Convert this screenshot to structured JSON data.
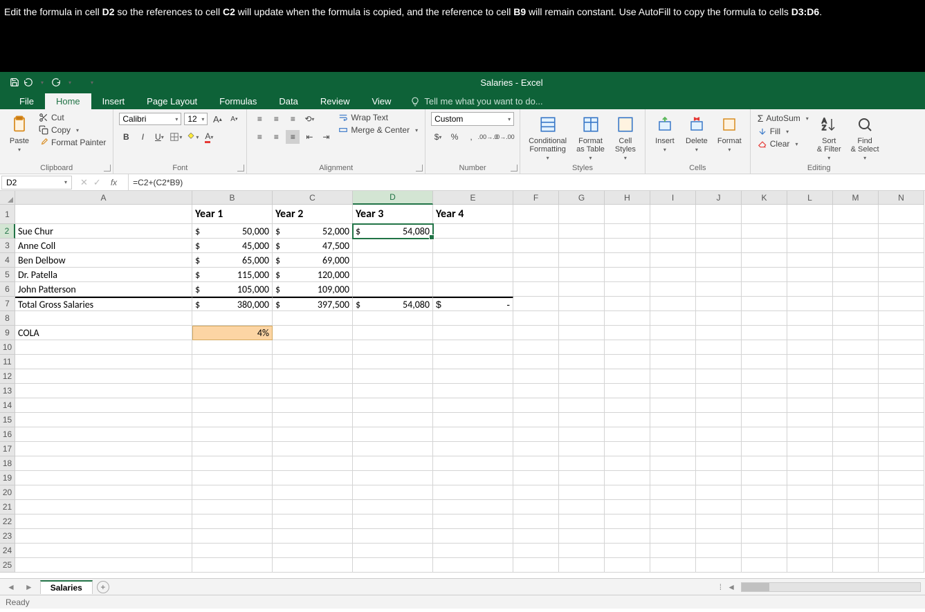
{
  "instruction": {
    "prefix": "Edit the formula in cell ",
    "cell1": "D2",
    "mid1": " so the references to cell ",
    "cell2": "C2",
    "mid2": " will update when the formula is copied, and the reference to cell ",
    "cell3": "B9",
    "mid3": " will remain constant. Use AutoFill to copy the formula to cells ",
    "cell4": "D3:D6",
    "suffix": "."
  },
  "title": "Salaries - Excel",
  "tabs": {
    "file": "File",
    "home": "Home",
    "insert": "Insert",
    "page_layout": "Page Layout",
    "formulas": "Formulas",
    "data": "Data",
    "review": "Review",
    "view": "View",
    "tell_me": "Tell me what you want to do..."
  },
  "clipboard": {
    "paste": "Paste",
    "cut": "Cut",
    "copy": "Copy",
    "painter": "Format Painter",
    "label": "Clipboard"
  },
  "font": {
    "name": "Calibri",
    "size": "12",
    "label": "Font"
  },
  "alignment": {
    "wrap": "Wrap Text",
    "merge": "Merge & Center",
    "label": "Alignment"
  },
  "number": {
    "format": "Custom",
    "label": "Number"
  },
  "styles": {
    "cond": "Conditional\nFormatting",
    "table": "Format\nas Table",
    "cell": "Cell\nStyles",
    "label": "Styles"
  },
  "cells": {
    "insert": "Insert",
    "delete": "Delete",
    "format": "Format",
    "label": "Cells"
  },
  "editing": {
    "autosum": "AutoSum",
    "fill": "Fill",
    "clear": "Clear",
    "sort": "Sort\n& Filter",
    "find": "Find\n& Select",
    "label": "Editing"
  },
  "name_box": "D2",
  "formula": "=C2+(C2*B9)",
  "columns": [
    "A",
    "B",
    "C",
    "D",
    "E",
    "F",
    "G",
    "H",
    "I",
    "J",
    "K",
    "L",
    "M",
    "N"
  ],
  "rows": {
    "headers": [
      "",
      "Year 1",
      "Year 2",
      "Year 3",
      "Year 4"
    ],
    "data": [
      {
        "name": "Sue Chur",
        "b": "50,000",
        "c": "52,000",
        "d": "54,080"
      },
      {
        "name": "Anne Coll",
        "b": "45,000",
        "c": "47,500",
        "d": ""
      },
      {
        "name": "Ben Delbow",
        "b": "65,000",
        "c": "69,000",
        "d": ""
      },
      {
        "name": "Dr. Patella",
        "b": "115,000",
        "c": "120,000",
        "d": ""
      },
      {
        "name": "John Patterson",
        "b": "105,000",
        "c": "109,000",
        "d": ""
      }
    ],
    "total": {
      "name": "Total Gross Salaries",
      "b": "380,000",
      "c": "397,500",
      "d": "54,080",
      "e": "-"
    },
    "cola": {
      "label": "COLA",
      "value": "4%"
    }
  },
  "sheet_tab": "Salaries",
  "status": "Ready",
  "colors": {
    "excel_green": "#0e6238",
    "selection_green": "#217346",
    "cola_bg": "#fcd5a4"
  }
}
